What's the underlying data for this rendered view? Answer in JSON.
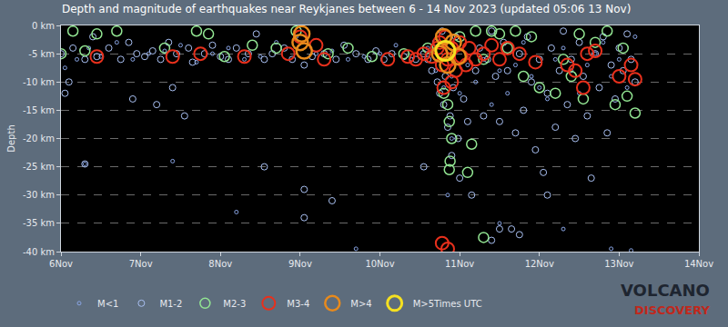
{
  "chart_data": {
    "type": "scatter",
    "title": "Depth and magnitude of earthquakes near Reykjanes between 6 - 14 Nov 2023 (updated 05:06 13 Nov)",
    "y_label": "Depth",
    "marker": "circle-open",
    "grid": true,
    "legend": "bottom",
    "annotations": [
      "Times UTC",
      "VOLCANO",
      "DISCOVERY"
    ],
    "xlim": [
      6,
      14
    ],
    "xticks": [
      {
        "value": 6,
        "label": "6Nov"
      },
      {
        "value": 7,
        "label": "7Nov"
      },
      {
        "value": 8,
        "label": "8Nov"
      },
      {
        "value": 9,
        "label": "9Nov"
      },
      {
        "value": 10,
        "label": "10Nov"
      },
      {
        "value": 11,
        "label": "11Nov"
      },
      {
        "value": 12,
        "label": "12Nov"
      },
      {
        "value": 13,
        "label": "13Nov"
      },
      {
        "value": 14,
        "label": "14Nov"
      }
    ],
    "ylim": [
      -40,
      0
    ],
    "yticks": [
      {
        "value": 0,
        "label": "0 km"
      },
      {
        "value": -5,
        "label": "-5 km"
      },
      {
        "value": -10,
        "label": "-10 km"
      },
      {
        "value": -15,
        "label": "-15 km"
      },
      {
        "value": -20,
        "label": "-20 km"
      },
      {
        "value": -25,
        "label": "-25 km"
      },
      {
        "value": -30,
        "label": "-30 km"
      },
      {
        "value": -35,
        "label": "-35 km"
      },
      {
        "value": -40,
        "label": "-40 km"
      }
    ],
    "series": [
      {
        "name": "M<1",
        "color": "#8aa6e6",
        "x": [
          6.05,
          6.2,
          6.35,
          6.5,
          6.7,
          6.9,
          7.1,
          7.3,
          7.5,
          7.7,
          7.9,
          8.1,
          8.3,
          8.5,
          8.7,
          8.95,
          9.2,
          9.4,
          9.6,
          9.8,
          10.0,
          10.2,
          10.4,
          10.6,
          10.7,
          10.8,
          10.9,
          11.0,
          11.1,
          11.2,
          11.3,
          11.4,
          11.5,
          11.6,
          11.7,
          11.8,
          11.9,
          12.0,
          12.1,
          12.2,
          12.3,
          12.4,
          12.5,
          12.6,
          12.7,
          12.8,
          12.9,
          13.0,
          13.1,
          13.2,
          6.3,
          7.4,
          8.2,
          9.7,
          10.9,
          11.5,
          12.3,
          12.9,
          13.15,
          10.85
        ],
        "values": [
          -7.5,
          -6,
          -4,
          -5.5,
          -3,
          -6,
          -5,
          -4.5,
          -3.5,
          -6.5,
          -5,
          -4,
          -6,
          -5.5,
          -3,
          -2,
          -5,
          -4.5,
          -6,
          -5.5,
          -5,
          -3.5,
          -6,
          -4,
          -8,
          -11,
          -9,
          -12,
          -7,
          -10,
          -6,
          -14,
          -8,
          -12,
          -7,
          -3,
          -9,
          -11,
          -13,
          -6,
          -4,
          -8,
          -12,
          -7,
          -5,
          -3,
          -9,
          -6,
          -11,
          -2,
          -24.5,
          -24,
          -33,
          -39.5,
          -20,
          -35,
          -36,
          -39.5,
          -39.8,
          -30
        ]
      },
      {
        "name": "M1-2",
        "color": "#a9c0f2",
        "x": [
          6.0,
          6.1,
          6.15,
          6.3,
          6.4,
          6.45,
          6.6,
          6.75,
          6.85,
          6.95,
          7.05,
          7.15,
          7.25,
          7.35,
          7.45,
          7.6,
          7.65,
          7.8,
          7.9,
          8.0,
          8.1,
          8.2,
          8.35,
          8.45,
          8.55,
          8.65,
          8.8,
          8.9,
          9.05,
          9.15,
          9.3,
          9.45,
          9.55,
          9.7,
          9.85,
          9.95,
          10.05,
          10.15,
          10.3,
          10.45,
          10.55,
          6.05,
          6.3,
          6.9,
          7.2,
          7.55,
          7.4,
          8.55,
          9.05,
          9.05,
          9.4,
          10.6,
          10.65,
          10.7,
          10.72,
          10.75,
          10.78,
          10.8,
          10.82,
          10.85,
          10.88,
          10.9,
          10.92,
          10.95,
          10.98,
          11.0,
          11.05,
          11.1,
          11.15,
          11.2,
          10.55,
          11.25,
          11.3,
          11.35,
          11.4,
          11.45,
          11.5,
          11.55,
          11.6,
          11.65,
          11.7,
          11.75,
          11.8,
          11.85,
          11.9,
          11.95,
          12.0,
          12.05,
          12.1,
          12.15,
          12.2,
          12.25,
          12.3,
          12.35,
          12.4,
          12.45,
          12.5,
          12.55,
          12.6,
          12.65,
          12.7,
          12.75,
          12.8,
          12.85,
          12.9,
          12.95,
          13.0,
          13.05,
          13.1,
          13.15,
          13.2,
          11.5,
          11.75,
          12.1,
          11.4
        ],
        "values": [
          -5,
          -10,
          -4,
          -6,
          -2,
          -5.5,
          -4,
          -6,
          -3,
          -5,
          -5.5,
          -4.5,
          -6,
          -3,
          -5,
          -4,
          -6.5,
          -5,
          -3.5,
          -5.5,
          -6,
          -4,
          -5,
          -1.5,
          -6,
          -5,
          -4,
          -6,
          -7,
          -5.5,
          -5,
          -6,
          -3.5,
          -5,
          -6,
          -4.5,
          -6,
          -5,
          -5.5,
          -6,
          -5,
          -12,
          -24.5,
          -13,
          -14,
          -16,
          -11,
          -25,
          -29,
          -34,
          -31,
          -6,
          -8,
          -3,
          -10,
          -12,
          -1,
          -14,
          -9,
          -18,
          -16,
          -23,
          -11,
          -2,
          -20,
          -27,
          -13,
          -17,
          -30,
          -8,
          -25,
          -4,
          -16,
          -6,
          -1,
          -9,
          -17,
          -3,
          -8,
          -36,
          -19,
          -5,
          -15,
          -2,
          -10,
          -22,
          -6,
          -26,
          -12,
          -4,
          -18,
          -8,
          -1,
          -14,
          -6,
          -20,
          -3,
          -9,
          -16,
          -27,
          -5,
          -11,
          -2,
          -19,
          -7,
          -13,
          -4,
          -8,
          -1.5,
          -6,
          -10,
          -36,
          -37,
          -30,
          -38
        ]
      },
      {
        "name": "M2-3",
        "color": "#92e592",
        "x": [
          6.0,
          6.15,
          6.45,
          6.7,
          6.3,
          7.3,
          7.7,
          7.85,
          8.05,
          8.4,
          8.7,
          8.95,
          9.35,
          9.6,
          9.9,
          10.3,
          10.6,
          10.8,
          10.85,
          10.87,
          10.9,
          10.88,
          10.87,
          11.15,
          11.1,
          11.3,
          11.0,
          11.2,
          11.4,
          11.5,
          11.6,
          11.7,
          11.9,
          12.0,
          12.2,
          12.3,
          12.4,
          12.55,
          12.7,
          12.85,
          12.95,
          13.1,
          13.2,
          11.3,
          12.5,
          13.05,
          11.8
        ],
        "values": [
          -5,
          -1,
          -1.5,
          -1,
          -4.5,
          -4,
          -1,
          -1.5,
          -5.5,
          -3.5,
          -4,
          -1,
          -5,
          -4,
          -5.5,
          -5,
          -4,
          -12,
          -14,
          -17,
          -20,
          -24,
          -25.5,
          -21,
          -26,
          -37.5,
          -2,
          -1,
          -1,
          -1.5,
          -4,
          -1,
          -2,
          -11,
          -12,
          -6,
          -9,
          -13,
          -3,
          -1,
          -14,
          -12.5,
          -15.5,
          -6,
          -1.5,
          -4,
          -9
        ]
      },
      {
        "name": "M3-4",
        "color": "#e8301c",
        "x": [
          6.45,
          7.4,
          7.75,
          8.3,
          8.85,
          9.0,
          9.2,
          9.3,
          10.1,
          10.35,
          10.45,
          10.55,
          10.65,
          10.72,
          10.75,
          10.78,
          10.82,
          10.85,
          10.9,
          10.95,
          11.0,
          11.02,
          11.08,
          11.12,
          11.2,
          11.3,
          11.4,
          11.5,
          11.6,
          11.75,
          11.95,
          12.35,
          12.6,
          12.7,
          12.55,
          12.45,
          13.0,
          13.15,
          13.2,
          10.78,
          10.85,
          10.9,
          10.8
        ],
        "values": [
          -5.5,
          -5.5,
          -5,
          -5.5,
          -5,
          -2,
          -3.5,
          -6,
          -6,
          -5.5,
          -6,
          -5,
          -5.5,
          -4,
          -3,
          -7,
          -2,
          -6,
          -4,
          -8,
          -3,
          -5.5,
          -7,
          -4,
          -6,
          -5,
          -3.5,
          -6,
          -4,
          -5,
          -6.5,
          -7,
          -5,
          -4.5,
          -11,
          -8,
          -9,
          -7,
          -9.5,
          -38.5,
          -39.5,
          -10,
          -11
        ]
      },
      {
        "name": "M>4",
        "color": "#e88a1c",
        "x": [
          9.0,
          9.05,
          9.02,
          10.75,
          10.8,
          10.85,
          10.92,
          10.98
        ],
        "values": [
          -3,
          -4.5,
          -1.5,
          -5,
          -2,
          -7,
          -3,
          -5.5
        ]
      },
      {
        "name": "M>5",
        "color": "#f5e020",
        "x": [
          10.82
        ],
        "values": [
          -4.5
        ]
      }
    ]
  }
}
